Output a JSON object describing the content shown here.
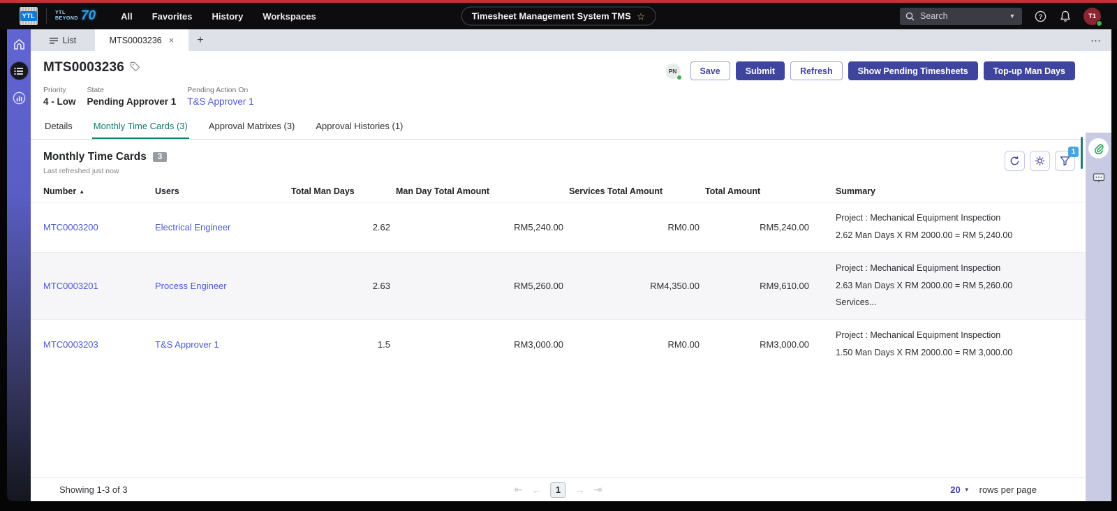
{
  "topbar": {
    "logo_text": "YTL",
    "logo2_line1": "YTL",
    "logo2_line2": "BEYOND",
    "logo2_badge": "70",
    "nav": {
      "all": "All",
      "favorites": "Favorites",
      "history": "History",
      "workspaces": "Workspaces"
    },
    "app_title": "Timesheet Management System TMS",
    "star": "☆",
    "search_placeholder": "Search",
    "avatar_initials": "T1"
  },
  "tabstrip": {
    "list_label": "List",
    "record_tab": "MTS0003236",
    "close": "×",
    "plus": "+",
    "more": "⋯"
  },
  "record": {
    "number": "MTS0003236",
    "fields": {
      "priority_label": "Priority",
      "priority_value": "4 - Low",
      "state_label": "State",
      "state_value": "Pending Approver 1",
      "pending_label": "Pending Action On",
      "pending_value": "T&S Approver 1"
    },
    "presence_initials": "PN",
    "buttons": {
      "save": "Save",
      "submit": "Submit",
      "refresh": "Refresh",
      "show_pending": "Show Pending Timesheets",
      "topup": "Top-up Man Days"
    }
  },
  "rec_tabs": {
    "details": "Details",
    "monthly": "Monthly Time Cards (3)",
    "matrixes": "Approval Matrixes (3)",
    "histories": "Approval Histories (1)"
  },
  "section": {
    "title": "Monthly Time Cards",
    "count_badge": "3",
    "refreshed": "Last refreshed just now",
    "filter_badge": "1"
  },
  "table": {
    "columns": [
      "Number",
      "Users",
      "Total Man Days",
      "Man Day Total Amount",
      "Services Total Amount",
      "Total Amount",
      "Summary"
    ],
    "sort_indicator": "▲",
    "rows": [
      {
        "number": "MTC0003200",
        "user": "Electrical Engineer",
        "man_days": "2.62",
        "man_day_total": "RM5,240.00",
        "services_total": "RM0.00",
        "total": "RM5,240.00",
        "summary": [
          "Project : Mechanical Equipment Inspection",
          "2.62 Man Days X RM 2000.00 = RM 5,240.00"
        ]
      },
      {
        "number": "MTC0003201",
        "user": "Process Engineer",
        "man_days": "2.63",
        "man_day_total": "RM5,260.00",
        "services_total": "RM4,350.00",
        "total": "RM9,610.00",
        "summary": [
          "Project : Mechanical Equipment Inspection",
          "2.63 Man Days X RM 2000.00 = RM 5,260.00",
          "Services..."
        ]
      },
      {
        "number": "MTC0003203",
        "user": "T&S Approver 1",
        "man_days": "1.5",
        "man_day_total": "RM3,000.00",
        "services_total": "RM0.00",
        "total": "RM3,000.00",
        "summary": [
          "Project : Mechanical Equipment Inspection",
          "1.50 Man Days X RM 2000.00 = RM 3,000.00"
        ]
      }
    ]
  },
  "footer": {
    "showing": "Showing 1-3 of 3",
    "first": "⇤",
    "prev": "←",
    "page": "1",
    "next": "→",
    "last": "⇥",
    "page_size": "20",
    "caret": "▼",
    "rows_per_page": "rows per page"
  },
  "colors": {
    "accent_purple": "#3f459f",
    "link_blue": "#4c59cf",
    "active_tab_teal": "#0e7b6c",
    "top_red_line": "#c03438",
    "rail_lavender": "#c9cbe5",
    "filter_badge_blue": "#49a4e3",
    "count_badge_gray": "#979ba4"
  }
}
